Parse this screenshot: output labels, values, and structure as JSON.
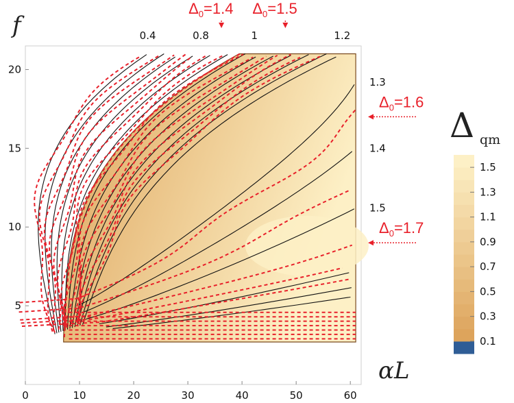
{
  "chart_data": {
    "type": "contour",
    "title": "",
    "xlabel": "αL",
    "ylabel": "f",
    "xlim": [
      0,
      62
    ],
    "ylim": [
      0,
      21.5
    ],
    "x_ticks": [
      "0",
      "10",
      "20",
      "30",
      "40",
      "50",
      "60"
    ],
    "x_tick_values": [
      0,
      10,
      20,
      30,
      40,
      50,
      60
    ],
    "y_ticks": [
      "5",
      "10",
      "15",
      "20"
    ],
    "y_tick_values": [
      5,
      10,
      15,
      20
    ],
    "top_labels": [
      {
        "text": "0.4",
        "x": 22.6
      },
      {
        "text": "0.8",
        "x": 32.4
      },
      {
        "text": "1",
        "x": 42.3
      },
      {
        "text": "1.2",
        "x": 58.5
      }
    ],
    "right_labels": [
      {
        "text": "1.3",
        "y": 19.2
      },
      {
        "text": "1.4",
        "y": 15.0
      },
      {
        "text": "1.5",
        "y": 11.2
      }
    ],
    "annotations": [
      {
        "prefix": "Δ",
        "sub": "0",
        "value": "=1.4",
        "direction": "down",
        "target": [
          36.2,
          21
        ]
      },
      {
        "prefix": "Δ",
        "sub": "0",
        "value": "=1.5",
        "direction": "down",
        "target": [
          48.0,
          21
        ]
      },
      {
        "prefix": "Δ",
        "sub": "0",
        "value": "=1.6",
        "direction": "left",
        "target": [
          62,
          17.0
        ]
      },
      {
        "prefix": "Δ",
        "sub": "0",
        "value": "=1.7",
        "direction": "left",
        "target": [
          62,
          9.0
        ]
      }
    ],
    "colorbar": {
      "title": "Δ",
      "subscript": "qm",
      "labels": [
        "1.5",
        "1.3",
        "1.1",
        "0.9",
        "0.7",
        "0.5",
        "0.3",
        "0.1"
      ],
      "values": [
        1.5,
        1.3,
        1.1,
        0.9,
        0.7,
        0.5,
        0.3,
        0.1
      ],
      "range": [
        0,
        1.6
      ],
      "low_color": "#2f5d96"
    },
    "colors": {
      "light": "#fdf0c6",
      "dark": "#dda45c",
      "solid_contour": "#111111",
      "dashed_contour": "#e8202a"
    }
  }
}
